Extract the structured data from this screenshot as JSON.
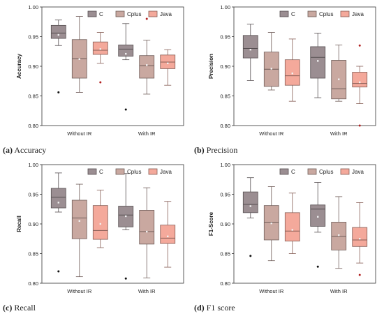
{
  "colors": {
    "C": "#9b8e92",
    "Cplus": "#c9a8a0",
    "Java": "#f4a99b",
    "dot": "#f0f0f0"
  },
  "legend": [
    "C",
    "Cplus",
    "Java"
  ],
  "panels": [
    {
      "label": "(a)",
      "caption": "Accuracy"
    },
    {
      "label": "(b)",
      "caption": "Precision"
    },
    {
      "label": "(c)",
      "caption": "Recall"
    },
    {
      "label": "(d)",
      "caption": "F1 score"
    }
  ],
  "chart_data": [
    {
      "type": "box",
      "title": "",
      "xlabel": "",
      "ylabel": "Accuracy",
      "ylim": [
        0.8,
        1.0
      ],
      "yticks": [
        "0.80",
        "0.85",
        "0.90",
        "0.95",
        "1.00"
      ],
      "categories": [
        "Without IR",
        "With IR"
      ],
      "series": [
        {
          "name": "C",
          "boxes": [
            {
              "min": 0.935,
              "q1": 0.947,
              "median": 0.956,
              "q3": 0.969,
              "max": 0.978,
              "mean": 0.953,
              "outliers": [
                0.856
              ]
            },
            {
              "min": 0.911,
              "q1": 0.917,
              "median": 0.929,
              "q3": 0.936,
              "max": 0.972,
              "mean": 0.921,
              "outliers": [
                0.827
              ]
            }
          ]
        },
        {
          "name": "Cplus",
          "boxes": [
            {
              "min": 0.856,
              "q1": 0.88,
              "median": 0.913,
              "q3": 0.945,
              "max": 0.984,
              "mean": 0.912,
              "outliers": []
            },
            {
              "min": 0.853,
              "q1": 0.88,
              "median": 0.901,
              "q3": 0.918,
              "max": 0.944,
              "mean": 0.902,
              "outliers": [
                0.98
              ]
            }
          ]
        },
        {
          "name": "Java",
          "boxes": [
            {
              "min": 0.905,
              "q1": 0.92,
              "median": 0.927,
              "q3": 0.941,
              "max": 0.957,
              "mean": 0.929,
              "outliers": [
                0.873
              ]
            },
            {
              "min": 0.868,
              "q1": 0.896,
              "median": 0.907,
              "q3": 0.919,
              "max": 0.928,
              "mean": 0.905,
              "outliers": []
            }
          ]
        }
      ]
    },
    {
      "type": "box",
      "title": "",
      "xlabel": "",
      "ylabel": "Precision",
      "ylim": [
        0.8,
        1.0
      ],
      "yticks": [
        "0.80",
        "0.85",
        "0.90",
        "0.95",
        "1.00"
      ],
      "categories": [
        "Without IR",
        "With IR"
      ],
      "series": [
        {
          "name": "C",
          "boxes": [
            {
              "min": 0.876,
              "q1": 0.914,
              "median": 0.93,
              "q3": 0.952,
              "max": 0.971,
              "mean": 0.928,
              "outliers": []
            },
            {
              "min": 0.847,
              "q1": 0.88,
              "median": 0.915,
              "q3": 0.933,
              "max": 0.956,
              "mean": 0.909,
              "outliers": []
            }
          ]
        },
        {
          "name": "Cplus",
          "boxes": [
            {
              "min": 0.86,
              "q1": 0.866,
              "median": 0.895,
              "q3": 0.924,
              "max": 0.957,
              "mean": 0.896,
              "outliers": []
            },
            {
              "min": 0.841,
              "q1": 0.845,
              "median": 0.862,
              "q3": 0.91,
              "max": 0.936,
              "mean": 0.878,
              "outliers": []
            }
          ]
        },
        {
          "name": "Java",
          "boxes": [
            {
              "min": 0.841,
              "q1": 0.868,
              "median": 0.884,
              "q3": 0.911,
              "max": 0.946,
              "mean": 0.888,
              "outliers": []
            },
            {
              "min": 0.837,
              "q1": 0.865,
              "median": 0.871,
              "q3": 0.89,
              "max": 0.9,
              "mean": 0.873,
              "outliers": [
                0.935,
                0.8
              ]
            }
          ]
        }
      ]
    },
    {
      "type": "box",
      "title": "",
      "xlabel": "",
      "ylabel": "Recall",
      "ylim": [
        0.8,
        1.0
      ],
      "yticks": [
        "0.80",
        "0.85",
        "0.90",
        "0.95",
        "1.00"
      ],
      "categories": [
        "Without IR",
        "With IR"
      ],
      "series": [
        {
          "name": "C",
          "boxes": [
            {
              "min": 0.92,
              "q1": 0.927,
              "median": 0.945,
              "q3": 0.96,
              "max": 0.986,
              "mean": 0.936,
              "outliers": [
                0.82
              ]
            },
            {
              "min": 0.89,
              "q1": 0.895,
              "median": 0.915,
              "q3": 0.93,
              "max": 0.985,
              "mean": 0.913,
              "outliers": [
                0.808
              ]
            }
          ]
        },
        {
          "name": "Cplus",
          "boxes": [
            {
              "min": 0.811,
              "q1": 0.875,
              "median": 0.91,
              "q3": 0.94,
              "max": 0.967,
              "mean": 0.905,
              "outliers": []
            },
            {
              "min": 0.809,
              "q1": 0.866,
              "median": 0.887,
              "q3": 0.923,
              "max": 0.961,
              "mean": 0.887,
              "outliers": []
            }
          ]
        },
        {
          "name": "Java",
          "boxes": [
            {
              "min": 0.86,
              "q1": 0.874,
              "median": 0.889,
              "q3": 0.931,
              "max": 0.957,
              "mean": 0.9,
              "outliers": []
            },
            {
              "min": 0.827,
              "q1": 0.867,
              "median": 0.876,
              "q3": 0.898,
              "max": 0.938,
              "mean": 0.879,
              "outliers": []
            }
          ]
        }
      ]
    },
    {
      "type": "box",
      "title": "",
      "xlabel": "",
      "ylabel": "F1-Score",
      "ylim": [
        0.8,
        1.0
      ],
      "yticks": [
        "0.80",
        "0.85",
        "0.90",
        "0.95",
        "1.00"
      ],
      "categories": [
        "Without IR",
        "With IR"
      ],
      "series": [
        {
          "name": "C",
          "boxes": [
            {
              "min": 0.91,
              "q1": 0.919,
              "median": 0.933,
              "q3": 0.954,
              "max": 0.978,
              "mean": 0.93,
              "outliers": [
                0.846
              ]
            },
            {
              "min": 0.886,
              "q1": 0.896,
              "median": 0.925,
              "q3": 0.932,
              "max": 0.97,
              "mean": 0.912,
              "outliers": [
                0.828
              ]
            }
          ]
        },
        {
          "name": "Cplus",
          "boxes": [
            {
              "min": 0.838,
              "q1": 0.873,
              "median": 0.903,
              "q3": 0.931,
              "max": 0.963,
              "mean": 0.901,
              "outliers": []
            },
            {
              "min": 0.825,
              "q1": 0.856,
              "median": 0.879,
              "q3": 0.903,
              "max": 0.946,
              "mean": 0.881,
              "outliers": []
            }
          ]
        },
        {
          "name": "Java",
          "boxes": [
            {
              "min": 0.85,
              "q1": 0.871,
              "median": 0.888,
              "q3": 0.919,
              "max": 0.952,
              "mean": 0.89,
              "outliers": []
            },
            {
              "min": 0.834,
              "q1": 0.862,
              "median": 0.873,
              "q3": 0.894,
              "max": 0.936,
              "mean": 0.875,
              "outliers": [
                0.814
              ]
            }
          ]
        }
      ]
    }
  ]
}
